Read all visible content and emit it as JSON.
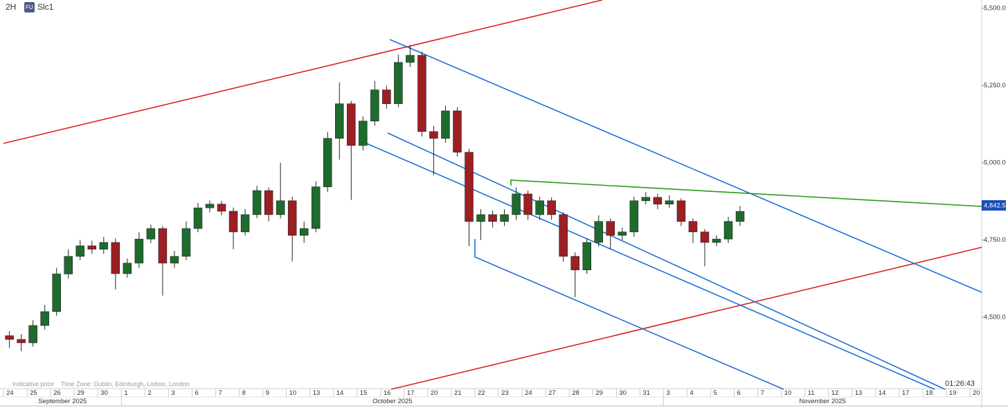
{
  "chart_data": {
    "type": "candlestick",
    "timeframe": "2H",
    "symbol_badge": "FU",
    "symbol": "Slc1",
    "footnote_price": "Indicative price",
    "timezone": "Time Zone: Dublin, Edinburgh, Lisbon, London",
    "countdown": "01:26:43",
    "up_color": "#1f6b2e",
    "down_color": "#9c1f24",
    "x": [
      0,
      0.5,
      1,
      1.5,
      2,
      2.5,
      3,
      3.5,
      4,
      4.5,
      5,
      5.5,
      6,
      6.5,
      7,
      7.5,
      8,
      8.5,
      9,
      9.5,
      10,
      10.5,
      11,
      11.5,
      12,
      12.5,
      13,
      13.5,
      14,
      14.5,
      15,
      15.5,
      16,
      16.5,
      17,
      17.5,
      18,
      18.5,
      19,
      19.5,
      20,
      20.5,
      21,
      21.5,
      22,
      22.5,
      23,
      23.5,
      24,
      24.5,
      25,
      25.5,
      26,
      26.5,
      27,
      27.5,
      28,
      28.5,
      29,
      29.5,
      30,
      30.5,
      31
    ],
    "open": [
      4440,
      4428,
      4417,
      4473,
      4518,
      4640,
      4697,
      4731,
      4720,
      4742,
      4641,
      4675,
      4753,
      4787,
      4675,
      4697,
      4787,
      4854,
      4866,
      4843,
      4776,
      4832,
      4910,
      4832,
      4877,
      4765,
      4787,
      4922,
      5079,
      5191,
      5056,
      5135,
      5236,
      5191,
      5325,
      5348,
      5101,
      5079,
      5168,
      5034,
      4810,
      4832,
      4810,
      4832,
      4899,
      4832,
      4877,
      4832,
      4697,
      4653,
      4742,
      4810,
      4765,
      4776,
      4877,
      4888,
      4866,
      4877,
      4810,
      4776,
      4742,
      4753,
      4810
    ],
    "high": [
      4455,
      4445,
      4490,
      4540,
      4660,
      4720,
      4750,
      4748,
      4760,
      4755,
      4690,
      4775,
      4800,
      4795,
      4715,
      4810,
      4870,
      4878,
      4876,
      4855,
      4850,
      4925,
      4920,
      5000,
      4890,
      4810,
      4940,
      5100,
      5260,
      5200,
      5150,
      5265,
      5250,
      5350,
      5381,
      5360,
      5120,
      5185,
      5180,
      5045,
      4850,
      4845,
      4850,
      4920,
      4910,
      4890,
      4888,
      4840,
      4710,
      4755,
      4830,
      4820,
      4790,
      4890,
      4905,
      4900,
      4895,
      4885,
      4820,
      4785,
      4765,
      4825,
      4860
    ],
    "low": [
      4400,
      4390,
      4405,
      4460,
      4505,
      4625,
      4685,
      4705,
      4705,
      4590,
      4628,
      4660,
      4740,
      4570,
      4660,
      4685,
      4775,
      4840,
      4830,
      4720,
      4765,
      4820,
      4810,
      4820,
      4680,
      4740,
      4775,
      4905,
      5010,
      4880,
      5040,
      5120,
      5175,
      5180,
      5310,
      5085,
      4960,
      5065,
      5020,
      4730,
      4750,
      4790,
      4795,
      4815,
      4815,
      4815,
      4815,
      4680,
      4565,
      4640,
      4728,
      4720,
      4750,
      4760,
      4865,
      4850,
      4855,
      4795,
      4740,
      4665,
      4730,
      4740,
      4795
    ],
    "close": [
      4428,
      4417,
      4473,
      4518,
      4640,
      4697,
      4731,
      4720,
      4742,
      4641,
      4675,
      4753,
      4787,
      4675,
      4697,
      4787,
      4854,
      4866,
      4843,
      4776,
      4832,
      4910,
      4832,
      4877,
      4765,
      4787,
      4922,
      5079,
      5191,
      5056,
      5135,
      5236,
      5191,
      5325,
      5348,
      5101,
      5079,
      5168,
      5034,
      4810,
      4832,
      4810,
      4832,
      4899,
      4832,
      4877,
      4832,
      4697,
      4653,
      4742,
      4810,
      4765,
      4776,
      4877,
      4888,
      4866,
      4877,
      4810,
      4776,
      4742,
      4753,
      4810,
      4842.5
    ],
    "last_price": {
      "value": 4842.5,
      "label": "4,842.5"
    },
    "ylim": [
      4271,
      5527
    ],
    "yticks": [
      {
        "value": 5500,
        "label": "5,500.0"
      },
      {
        "value": 5250,
        "label": "5,250.0"
      },
      {
        "value": 5000,
        "label": "5,000.0"
      },
      {
        "value": 4750,
        "label": "4,750.0"
      },
      {
        "value": 4500,
        "label": "4,500.0"
      }
    ],
    "xlim": [
      -0.15,
      41.5
    ],
    "xticks": [
      {
        "value": 0,
        "label": "24"
      },
      {
        "value": 1,
        "label": "25"
      },
      {
        "value": 2,
        "label": "26"
      },
      {
        "value": 3,
        "label": "29"
      },
      {
        "value": 4,
        "label": "30"
      },
      {
        "value": 5,
        "label": "1"
      },
      {
        "value": 6,
        "label": "2"
      },
      {
        "value": 7,
        "label": "3"
      },
      {
        "value": 8,
        "label": "6"
      },
      {
        "value": 9,
        "label": "7"
      },
      {
        "value": 10,
        "label": "8"
      },
      {
        "value": 11,
        "label": "9"
      },
      {
        "value": 12,
        "label": "10"
      },
      {
        "value": 13,
        "label": "13"
      },
      {
        "value": 14,
        "label": "14"
      },
      {
        "value": 15,
        "label": "15"
      },
      {
        "value": 16,
        "label": "16"
      },
      {
        "value": 17,
        "label": "17"
      },
      {
        "value": 18,
        "label": "20"
      },
      {
        "value": 19,
        "label": "21"
      },
      {
        "value": 20,
        "label": "22"
      },
      {
        "value": 21,
        "label": "23"
      },
      {
        "value": 22,
        "label": "24"
      },
      {
        "value": 23,
        "label": "27"
      },
      {
        "value": 24,
        "label": "28"
      },
      {
        "value": 25,
        "label": "29"
      },
      {
        "value": 26,
        "label": "30"
      },
      {
        "value": 27,
        "label": "31"
      },
      {
        "value": 28,
        "label": "3"
      },
      {
        "value": 29,
        "label": "4"
      },
      {
        "value": 30,
        "label": "5"
      },
      {
        "value": 31,
        "label": "6"
      },
      {
        "value": 32,
        "label": "7"
      },
      {
        "value": 33,
        "label": "10"
      },
      {
        "value": 34,
        "label": "11"
      },
      {
        "value": 35,
        "label": "12"
      },
      {
        "value": 36,
        "label": "13"
      },
      {
        "value": 37,
        "label": "14"
      },
      {
        "value": 38,
        "label": "17"
      },
      {
        "value": 39,
        "label": "18"
      },
      {
        "value": 40,
        "label": "19"
      },
      {
        "value": 41,
        "label": "20"
      }
    ],
    "months": [
      "September 2025",
      "October 2025",
      "November 2025"
    ]
  }
}
